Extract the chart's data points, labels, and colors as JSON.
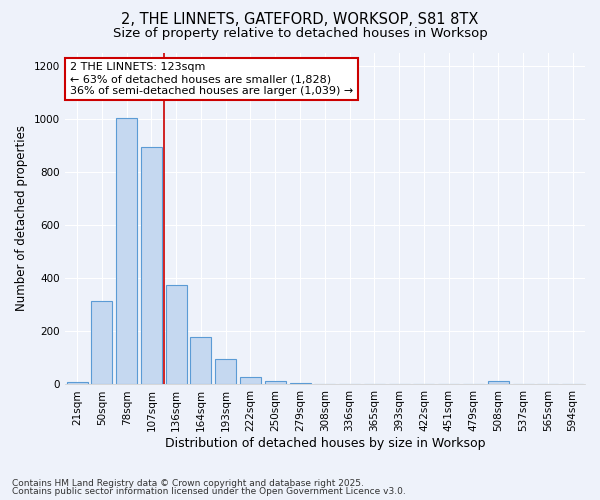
{
  "title_line1": "2, THE LINNETS, GATEFORD, WORKSOP, S81 8TX",
  "title_line2": "Size of property relative to detached houses in Worksop",
  "xlabel": "Distribution of detached houses by size in Worksop",
  "ylabel": "Number of detached properties",
  "categories": [
    "21sqm",
    "50sqm",
    "78sqm",
    "107sqm",
    "136sqm",
    "164sqm",
    "193sqm",
    "222sqm",
    "250sqm",
    "279sqm",
    "308sqm",
    "336sqm",
    "365sqm",
    "393sqm",
    "422sqm",
    "451sqm",
    "479sqm",
    "508sqm",
    "537sqm",
    "565sqm",
    "594sqm"
  ],
  "values": [
    8,
    315,
    1005,
    895,
    375,
    180,
    95,
    28,
    12,
    5,
    2,
    2,
    2,
    2,
    2,
    2,
    2,
    12,
    2,
    2,
    2
  ],
  "bar_color": "#c5d8f0",
  "bar_edge_color": "#5b9bd5",
  "annotation_text": "2 THE LINNETS: 123sqm\n← 63% of detached houses are smaller (1,828)\n36% of semi-detached houses are larger (1,039) →",
  "annotation_box_facecolor": "#ffffff",
  "annotation_box_edgecolor": "#cc0000",
  "vline_x": 3.5,
  "vline_color": "#cc0000",
  "ylim": [
    0,
    1250
  ],
  "yticks": [
    0,
    200,
    400,
    600,
    800,
    1000,
    1200
  ],
  "background_color": "#eef2fa",
  "grid_color": "#ffffff",
  "footer_line1": "Contains HM Land Registry data © Crown copyright and database right 2025.",
  "footer_line2": "Contains public sector information licensed under the Open Government Licence v3.0."
}
